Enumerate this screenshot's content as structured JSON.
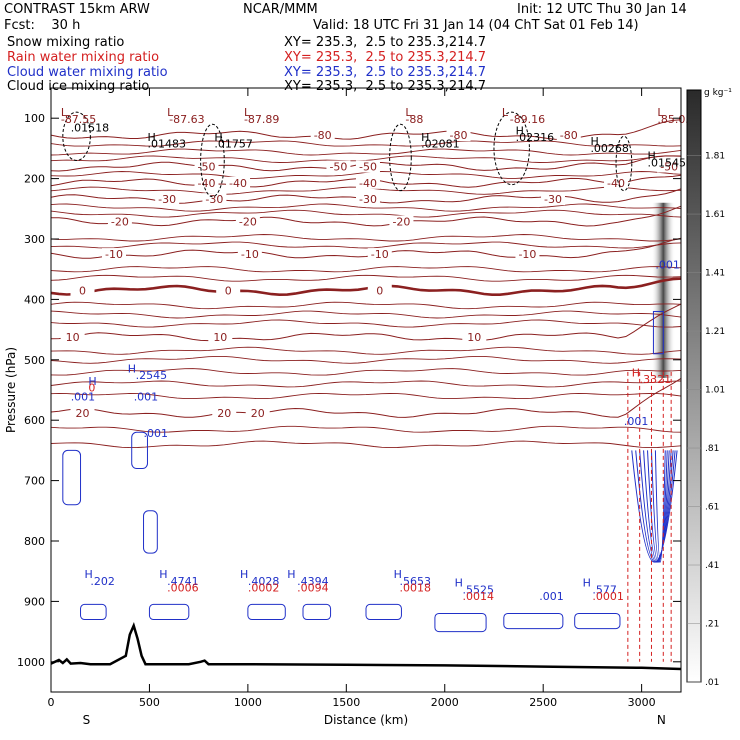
{
  "header": {
    "model": "CONTRAST 15km ARW",
    "org": "NCAR/MMM",
    "init": "Init: 12 UTC Thu 30 Jan 14",
    "fcst": "Fcst:    30 h",
    "valid": "Valid: 18 UTC Fri 31 Jan 14 (04 ChT Sat 01 Feb 14)"
  },
  "fields": [
    {
      "name": "Snow mixing ratio",
      "xy": "XY= 235.3,  2.5 to 235.3,214.7",
      "color": "#000000"
    },
    {
      "name": "Rain water mixing ratio",
      "xy": "XY= 235.3,  2.5 to 235.3,214.7",
      "color": "#d42020"
    },
    {
      "name": "Cloud water mixing ratio",
      "xy": "XY= 235.3,  2.5 to 235.3,214.7",
      "color": "#2030c8"
    },
    {
      "name": "Cloud ice mixing ratio",
      "xy": "XY= 235.3,  2.5 to 235.3,214.7",
      "color": "#000000"
    }
  ],
  "chart_data": {
    "type": "contour cross-section",
    "xlabel": "Distance (km)",
    "ylabel": "Pressure (hPa)",
    "x_ticks": [
      0,
      500,
      1000,
      1500,
      2000,
      2500,
      3000
    ],
    "x_tick_labels": [
      "0",
      "500",
      "1000",
      "1500",
      "2000",
      "2500",
      "3000"
    ],
    "xlim": [
      0,
      3200
    ],
    "y_ticks": [
      100,
      200,
      300,
      400,
      500,
      600,
      700,
      800,
      900,
      1000
    ],
    "y_tick_labels": [
      "100",
      "200",
      "300",
      "400",
      "500",
      "600",
      "700",
      "800",
      "900",
      "1000"
    ],
    "ylim": [
      50,
      1050
    ],
    "end_labels": {
      "left": "S",
      "right": "N"
    },
    "colorbar": {
      "unit": "g kg⁻¹",
      "levels": [
        0.01,
        0.21,
        0.41,
        0.61,
        0.81,
        1.01,
        1.21,
        1.41,
        1.61,
        1.81
      ],
      "labels": [
        ".01",
        ".21",
        ".41",
        ".61",
        ".81",
        "1.01",
        "1.21",
        "1.41",
        "1.61",
        "1.81"
      ]
    },
    "temperature_isotherms": {
      "color": "#8b2020",
      "series": [
        {
          "value": -80,
          "label": "-80",
          "p": 128
        },
        {
          "value": -50,
          "label": "-50",
          "p": 180
        },
        {
          "value": -40,
          "label": "-40",
          "p": 207
        },
        {
          "value": -30,
          "label": "-30",
          "p": 234
        },
        {
          "value": -20,
          "label": "-20",
          "p": 271
        },
        {
          "value": -10,
          "label": "-10",
          "p": 325
        },
        {
          "value": 0,
          "label": "0",
          "p": 385
        },
        {
          "value": 10,
          "label": "10",
          "p": 462
        },
        {
          "value": 20,
          "label": "20",
          "p": 588
        }
      ],
      "label_positions": [
        {
          "label": "-80",
          "x": 1380,
          "p": 128
        },
        {
          "label": "-80",
          "x": 2070,
          "p": 128
        },
        {
          "label": "-80",
          "x": 2630,
          "p": 128
        },
        {
          "label": "-50",
          "x": 790,
          "p": 180
        },
        {
          "label": "-50",
          "x": 1460,
          "p": 180
        },
        {
          "label": "-50",
          "x": 1610,
          "p": 180
        },
        {
          "label": "-50",
          "x": 3140,
          "p": 180
        },
        {
          "label": "-40",
          "x": 790,
          "p": 207
        },
        {
          "label": "-40",
          "x": 950,
          "p": 207
        },
        {
          "label": "-40",
          "x": 1610,
          "p": 207
        },
        {
          "label": "-40",
          "x": 2870,
          "p": 207
        },
        {
          "label": "-30",
          "x": 590,
          "p": 234
        },
        {
          "label": "-30",
          "x": 830,
          "p": 234
        },
        {
          "label": "-30",
          "x": 1610,
          "p": 234
        },
        {
          "label": "-30",
          "x": 2550,
          "p": 234
        },
        {
          "label": "-20",
          "x": 350,
          "p": 271
        },
        {
          "label": "-20",
          "x": 1000,
          "p": 271
        },
        {
          "label": "-20",
          "x": 1780,
          "p": 271
        },
        {
          "label": "-10",
          "x": 320,
          "p": 325
        },
        {
          "label": "-10",
          "x": 1010,
          "p": 325
        },
        {
          "label": "-10",
          "x": 1670,
          "p": 325
        },
        {
          "label": "-10",
          "x": 2420,
          "p": 325
        },
        {
          "label": "0",
          "x": 160,
          "p": 385
        },
        {
          "label": "0",
          "x": 900,
          "p": 385
        },
        {
          "label": "0",
          "x": 1670,
          "p": 385
        },
        {
          "label": "10",
          "x": 110,
          "p": 462
        },
        {
          "label": "10",
          "x": 860,
          "p": 462
        },
        {
          "label": "10",
          "x": 2150,
          "p": 462
        },
        {
          "label": "20",
          "x": 160,
          "p": 588
        },
        {
          "label": "20",
          "x": 880,
          "p": 588
        },
        {
          "label": "20",
          "x": 1050,
          "p": 588
        }
      ]
    },
    "annotations": [
      {
        "text": "L",
        "x": 50,
        "p": 90,
        "color": "#8b2020"
      },
      {
        "text": "-87.55",
        "x": 50,
        "p": 101,
        "color": "#8b2020"
      },
      {
        "text": "L",
        "x": 590,
        "p": 90,
        "color": "#8b2020"
      },
      {
        "text": "-87.63",
        "x": 600,
        "p": 101,
        "color": "#8b2020"
      },
      {
        "text": "L",
        "x": 980,
        "p": 90,
        "color": "#8b2020"
      },
      {
        "text": "-87.89",
        "x": 980,
        "p": 101,
        "color": "#8b2020"
      },
      {
        "text": "L",
        "x": 1800,
        "p": 90,
        "color": "#8b2020"
      },
      {
        "text": "-88",
        "x": 1800,
        "p": 101,
        "color": "#8b2020"
      },
      {
        "text": "L",
        "x": 2290,
        "p": 90,
        "color": "#8b2020"
      },
      {
        "text": "-89.16",
        "x": 2330,
        "p": 101,
        "color": "#8b2020"
      },
      {
        "text": "L",
        "x": 3080,
        "p": 90,
        "color": "#8b2020"
      },
      {
        "text": ".85.05",
        "x": 3080,
        "p": 101,
        "color": "#8b2020"
      },
      {
        "text": ".01518",
        "x": 100,
        "p": 115,
        "color": "#000000"
      },
      {
        "text": "H",
        "x": 490,
        "p": 131,
        "color": "#000000"
      },
      {
        "text": ".01483",
        "x": 490,
        "p": 142,
        "color": "#000000"
      },
      {
        "text": "H",
        "x": 830,
        "p": 131,
        "color": "#000000"
      },
      {
        "text": ".01757",
        "x": 830,
        "p": 142,
        "color": "#000000"
      },
      {
        "text": "H",
        "x": 1880,
        "p": 131,
        "color": "#000000"
      },
      {
        "text": ".02081",
        "x": 1880,
        "p": 142,
        "color": "#000000"
      },
      {
        "text": "H",
        "x": 2360,
        "p": 120,
        "color": "#000000"
      },
      {
        "text": ".02316",
        "x": 2360,
        "p": 131,
        "color": "#000000"
      },
      {
        "text": "H",
        "x": 2740,
        "p": 138,
        "color": "#000000"
      },
      {
        "text": ".00268",
        "x": 2740,
        "p": 149,
        "color": "#000000"
      },
      {
        "text": "H",
        "x": 3030,
        "p": 162,
        "color": "#000000"
      },
      {
        "text": ".01545",
        "x": 3030,
        "p": 173,
        "color": "#000000"
      },
      {
        "text": ".001",
        "x": 3070,
        "p": 342,
        "color": "#2030c8"
      },
      {
        "text": "H",
        "x": 390,
        "p": 514,
        "color": "#2030c8"
      },
      {
        "text": ".2545",
        "x": 430,
        "p": 525,
        "color": "#2030c8"
      },
      {
        "text": "H",
        "x": 190,
        "p": 535,
        "color": "#2030c8"
      },
      {
        "text": "0",
        "x": 190,
        "p": 546,
        "color": "#d42020"
      },
      {
        "text": ".001",
        "x": 100,
        "p": 561,
        "color": "#2030c8"
      },
      {
        "text": ".001",
        "x": 420,
        "p": 561,
        "color": "#2030c8"
      },
      {
        "text": ".001",
        "x": 470,
        "p": 621,
        "color": "#2030c8"
      },
      {
        "text": "H",
        "x": 2950,
        "p": 521,
        "color": "#d42020"
      },
      {
        "text": ".3321",
        "x": 2990,
        "p": 532,
        "color": "#d42020"
      },
      {
        "text": ".001",
        "x": 2910,
        "p": 601,
        "color": "#2030c8"
      },
      {
        "text": "H",
        "x": 170,
        "p": 855,
        "color": "#2030c8"
      },
      {
        "text": ".202",
        "x": 200,
        "p": 866,
        "color": "#2030c8"
      },
      {
        "text": "H",
        "x": 550,
        "p": 855,
        "color": "#2030c8"
      },
      {
        "text": ".4741",
        "x": 590,
        "p": 866,
        "color": "#2030c8"
      },
      {
        "text": ".0006",
        "x": 590,
        "p": 877,
        "color": "#d42020"
      },
      {
        "text": "H",
        "x": 960,
        "p": 855,
        "color": "#2030c8"
      },
      {
        "text": ".4028",
        "x": 1000,
        "p": 866,
        "color": "#2030c8"
      },
      {
        "text": ".0002",
        "x": 1000,
        "p": 877,
        "color": "#d42020"
      },
      {
        "text": "H",
        "x": 1200,
        "p": 855,
        "color": "#2030c8"
      },
      {
        "text": ".4394",
        "x": 1250,
        "p": 866,
        "color": "#2030c8"
      },
      {
        "text": ".0094",
        "x": 1250,
        "p": 877,
        "color": "#d42020"
      },
      {
        "text": "H",
        "x": 1740,
        "p": 855,
        "color": "#2030c8"
      },
      {
        "text": ".5653",
        "x": 1770,
        "p": 866,
        "color": "#2030c8"
      },
      {
        "text": ".0018",
        "x": 1770,
        "p": 877,
        "color": "#d42020"
      },
      {
        "text": "H",
        "x": 2050,
        "p": 869,
        "color": "#2030c8"
      },
      {
        "text": ".5525",
        "x": 2090,
        "p": 880,
        "color": "#2030c8"
      },
      {
        "text": ".0014",
        "x": 2090,
        "p": 891,
        "color": "#d42020"
      },
      {
        "text": ".001",
        "x": 2480,
        "p": 891,
        "color": "#2030c8"
      },
      {
        "text": "H",
        "x": 2700,
        "p": 869,
        "color": "#2030c8"
      },
      {
        "text": ".577",
        "x": 2750,
        "p": 880,
        "color": "#2030c8"
      },
      {
        "text": ".0001",
        "x": 2750,
        "p": 891,
        "color": "#d42020"
      }
    ],
    "terrain": {
      "x": [
        0,
        40,
        60,
        80,
        100,
        150,
        200,
        300,
        380,
        400,
        420,
        440,
        460,
        480,
        520,
        700,
        760,
        780,
        800,
        1000,
        1500,
        2000,
        2500,
        3000,
        3200
      ],
      "p": [
        1003,
        997,
        1002,
        996,
        1003,
        1002,
        1004,
        1004,
        990,
        955,
        940,
        962,
        990,
        1004,
        1004,
        1004,
        1000,
        998,
        1004,
        1004,
        1005,
        1006,
        1008,
        1010,
        1012
      ]
    }
  }
}
